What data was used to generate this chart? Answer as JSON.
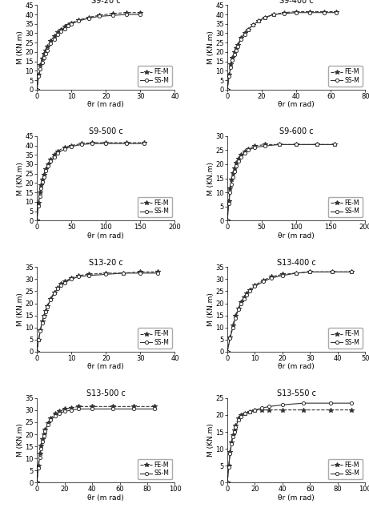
{
  "subplots": [
    {
      "title": "S9-20 c",
      "xlabel": "θr (m rad)",
      "ylabel": "M (KN.m)",
      "xlim": [
        0,
        40
      ],
      "ylim": [
        0,
        45
      ],
      "xticks": [
        0,
        10,
        20,
        30,
        40
      ],
      "yticks": [
        0,
        5,
        10,
        15,
        20,
        25,
        30,
        35,
        40,
        45
      ],
      "fem_x": [
        0,
        0.5,
        1,
        1.5,
        2,
        2.5,
        3,
        4,
        5,
        6,
        7,
        8,
        9,
        10,
        12,
        15,
        18,
        22,
        26,
        30
      ],
      "fem_y": [
        0,
        8,
        13,
        16.5,
        19,
        21,
        23,
        26,
        28.5,
        30.5,
        32,
        33.5,
        34.5,
        35.5,
        37,
        38.5,
        39.5,
        40.5,
        41,
        41
      ],
      "ssm_x": [
        0,
        0.5,
        1,
        1.5,
        2,
        2.5,
        3,
        4,
        5,
        6,
        7,
        8,
        9,
        10,
        12,
        15,
        18,
        22,
        26,
        30
      ],
      "ssm_y": [
        0,
        7,
        11,
        14.5,
        17,
        19,
        21,
        24.5,
        27,
        29.5,
        31,
        32.5,
        34,
        35,
        36.5,
        38,
        39,
        39.5,
        40,
        40
      ]
    },
    {
      "title": "S9-400 c",
      "xlabel": "θr (m rad)",
      "ylabel": "M (KN.m)",
      "xlim": [
        0,
        80
      ],
      "ylim": [
        0,
        45
      ],
      "xticks": [
        0,
        20,
        40,
        60,
        80
      ],
      "yticks": [
        0,
        5,
        10,
        15,
        20,
        25,
        30,
        35,
        40,
        45
      ],
      "fem_x": [
        0,
        1,
        2,
        3,
        4,
        5,
        6,
        8,
        10,
        12,
        15,
        18,
        22,
        27,
        33,
        40,
        48,
        56,
        63
      ],
      "fem_y": [
        0,
        8,
        13.5,
        17,
        20,
        22,
        24,
        27.5,
        30,
        32,
        34.5,
        36.5,
        38.5,
        40,
        41,
        41.5,
        41.5,
        41.5,
        41.5
      ],
      "ssm_x": [
        0,
        1,
        2,
        3,
        4,
        5,
        6,
        8,
        10,
        12,
        15,
        18,
        22,
        27,
        33,
        40,
        48,
        56,
        63
      ],
      "ssm_y": [
        0,
        7,
        12,
        15.5,
        18.5,
        21,
        23,
        27,
        29.5,
        32,
        34.5,
        36.5,
        38.5,
        40,
        40.5,
        41,
        41,
        41,
        41
      ]
    },
    {
      "title": "S9-500 c",
      "xlabel": "θr (m rad)",
      "ylabel": "M (KN.m)",
      "xlim": [
        0,
        200
      ],
      "ylim": [
        0,
        45
      ],
      "xticks": [
        0,
        50,
        100,
        150,
        200
      ],
      "yticks": [
        0,
        5,
        10,
        15,
        20,
        25,
        30,
        35,
        40,
        45
      ],
      "fem_x": [
        0,
        2,
        4,
        6,
        8,
        10,
        13,
        16,
        20,
        25,
        30,
        40,
        50,
        65,
        80,
        100,
        130,
        155
      ],
      "fem_y": [
        0,
        9.5,
        15,
        19,
        22,
        24.5,
        27.5,
        30,
        32.5,
        35,
        37,
        39,
        40,
        41,
        41.5,
        41.5,
        41.5,
        41.5
      ],
      "ssm_x": [
        0,
        2,
        4,
        6,
        8,
        10,
        13,
        16,
        20,
        25,
        30,
        40,
        50,
        65,
        80,
        100,
        130,
        155
      ],
      "ssm_y": [
        0,
        8,
        13,
        17,
        20.5,
        23,
        26.5,
        29,
        31.5,
        34,
        36,
        38,
        39.5,
        40.5,
        41,
        41,
        41,
        41
      ]
    },
    {
      "title": "S9-600 c",
      "xlabel": "θr (m rad)",
      "ylabel": "M (KN.m)",
      "xlim": [
        0,
        200
      ],
      "ylim": [
        0,
        30
      ],
      "xticks": [
        0,
        50,
        100,
        150,
        200
      ],
      "yticks": [
        0,
        5,
        10,
        15,
        20,
        25,
        30
      ],
      "fem_x": [
        0,
        2,
        4,
        6,
        8,
        10,
        13,
        16,
        20,
        25,
        30,
        40,
        55,
        75,
        100,
        130,
        155
      ],
      "fem_y": [
        0,
        7,
        11.5,
        14.5,
        17,
        18.5,
        20.5,
        22,
        23.5,
        24.5,
        25.5,
        26.5,
        27,
        27,
        27,
        27,
        27
      ],
      "ssm_x": [
        0,
        2,
        4,
        6,
        8,
        10,
        13,
        16,
        20,
        25,
        30,
        40,
        55,
        75,
        100,
        130,
        155
      ],
      "ssm_y": [
        0,
        6,
        10,
        13,
        15.5,
        17.5,
        19.5,
        21,
        22.5,
        24,
        25,
        26,
        26.5,
        27,
        27,
        27,
        27
      ]
    },
    {
      "title": "S13-20 c",
      "xlabel": "θr (m rad)",
      "ylabel": "M (KN.m)",
      "xlim": [
        0,
        40
      ],
      "ylim": [
        0,
        35
      ],
      "xticks": [
        0,
        10,
        20,
        30,
        40
      ],
      "yticks": [
        0,
        5,
        10,
        15,
        20,
        25,
        30,
        35
      ],
      "fem_x": [
        0,
        0.5,
        1,
        1.5,
        2,
        2.5,
        3,
        4,
        5,
        6,
        7,
        8,
        10,
        12,
        15,
        20,
        25,
        30,
        35
      ],
      "fem_y": [
        0,
        5,
        9,
        12.5,
        15,
        17,
        19,
        22,
        24.5,
        26.5,
        28,
        29,
        30.5,
        31.5,
        32,
        32.5,
        32.5,
        33,
        33
      ],
      "ssm_x": [
        0,
        0.5,
        1,
        1.5,
        2,
        2.5,
        3,
        4,
        5,
        6,
        7,
        8,
        10,
        12,
        15,
        20,
        25,
        30,
        35
      ],
      "ssm_y": [
        0,
        5,
        8.5,
        12,
        14.5,
        16.5,
        18.5,
        21.5,
        24,
        26,
        27.5,
        28.5,
        30,
        31,
        31.5,
        32,
        32.5,
        32.5,
        32.5
      ]
    },
    {
      "title": "S13-400 c",
      "xlabel": "θr (m rad)",
      "ylabel": "M (KN.m)",
      "xlim": [
        0,
        50
      ],
      "ylim": [
        0,
        35
      ],
      "xticks": [
        0,
        10,
        20,
        30,
        40,
        50
      ],
      "yticks": [
        0,
        5,
        10,
        15,
        20,
        25,
        30,
        35
      ],
      "fem_x": [
        0,
        1,
        2,
        3,
        4,
        5,
        6,
        7,
        8,
        10,
        13,
        16,
        20,
        25,
        30,
        38,
        45
      ],
      "fem_y": [
        0,
        6,
        11,
        15,
        18,
        20.5,
        22.5,
        24,
        25.5,
        27.5,
        29.5,
        31,
        32,
        32.5,
        33,
        33,
        33
      ],
      "ssm_x": [
        0,
        1,
        2,
        3,
        4,
        5,
        6,
        7,
        8,
        10,
        13,
        16,
        20,
        25,
        30,
        38,
        45
      ],
      "ssm_y": [
        0,
        5.5,
        10,
        14,
        17.5,
        20,
        22,
        23.5,
        25,
        27,
        29,
        30.5,
        31.5,
        32.5,
        33,
        33,
        33
      ]
    },
    {
      "title": "S13-500 c",
      "xlabel": "θr (m rad)",
      "ylabel": "M (KN.m)",
      "xlim": [
        0,
        100
      ],
      "ylim": [
        0,
        35
      ],
      "xticks": [
        0,
        20,
        40,
        60,
        80,
        100
      ],
      "yticks": [
        0,
        5,
        10,
        15,
        20,
        25,
        30,
        35
      ],
      "fem_x": [
        0,
        1,
        2,
        3,
        4,
        5,
        6,
        8,
        10,
        13,
        16,
        20,
        25,
        30,
        40,
        55,
        70,
        85
      ],
      "fem_y": [
        0,
        7,
        12,
        15.5,
        18,
        20,
        22,
        24.5,
        26.5,
        28.5,
        29.5,
        30.5,
        31,
        31.5,
        31.5,
        31.5,
        31.5,
        31.5
      ],
      "ssm_x": [
        0,
        1,
        2,
        3,
        4,
        5,
        6,
        8,
        10,
        13,
        16,
        20,
        25,
        30,
        40,
        55,
        70,
        85
      ],
      "ssm_y": [
        0,
        6,
        10.5,
        14,
        17,
        19.5,
        21.5,
        24,
        26,
        27.5,
        28.5,
        29.5,
        30,
        30.5,
        30.5,
        30.5,
        30.5,
        30.5
      ]
    },
    {
      "title": "S13-550 c",
      "xlabel": "θr (m rad)",
      "ylabel": "M (KN.m)",
      "xlim": [
        0,
        100
      ],
      "ylim": [
        0,
        25
      ],
      "xticks": [
        0,
        20,
        40,
        60,
        80,
        100
      ],
      "yticks": [
        0,
        5,
        10,
        15,
        20,
        25
      ],
      "fem_x": [
        0,
        1,
        2,
        3,
        4,
        5,
        6,
        8,
        10,
        13,
        16,
        20,
        25,
        30,
        40,
        55,
        75,
        90
      ],
      "fem_y": [
        0,
        5,
        9,
        12,
        14,
        15.5,
        17,
        19,
        20,
        20.5,
        21,
        21.5,
        21.5,
        21.5,
        21.5,
        21.5,
        21.5,
        21.5
      ],
      "ssm_x": [
        0,
        1,
        2,
        3,
        4,
        5,
        6,
        8,
        10,
        13,
        16,
        20,
        25,
        30,
        40,
        55,
        75,
        90
      ],
      "ssm_y": [
        0,
        4.5,
        8.5,
        11.5,
        13.5,
        15,
        16.5,
        18.5,
        19.5,
        20.5,
        21,
        21.5,
        22,
        22.5,
        23,
        23.5,
        23.5,
        23.5
      ]
    }
  ],
  "fem_color": "#333333",
  "ssm_color": "#333333",
  "fem_linestyle": "--",
  "ssm_linestyle": "-",
  "fem_marker": "*",
  "ssm_marker": "o",
  "marker_size_fem": 4,
  "marker_size_ssm": 3,
  "legend_fem": "FE-M",
  "legend_ssm": "SS-M",
  "title_fontsize": 7,
  "label_fontsize": 6.5,
  "tick_fontsize": 6,
  "legend_fontsize": 5.5,
  "linewidth": 0.8
}
